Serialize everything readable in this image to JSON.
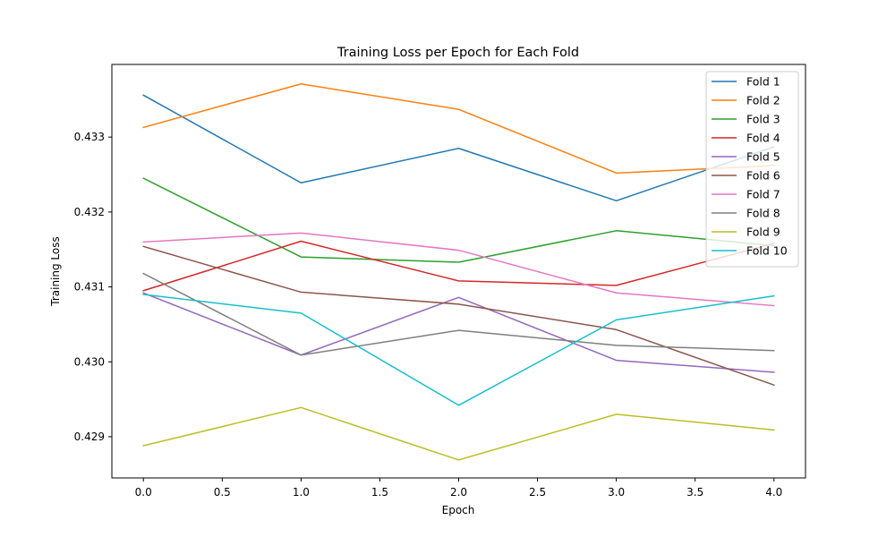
{
  "chart_data": {
    "type": "line",
    "title": "Training Loss per Epoch for Each Fold",
    "xlabel": "Epoch",
    "ylabel": "Training Loss",
    "x": [
      0,
      1,
      2,
      3,
      4
    ],
    "xlim": [
      -0.2,
      4.2
    ],
    "ylim": [
      0.42845,
      0.43397
    ],
    "xticks": [
      "0.0",
      "0.5",
      "1.0",
      "1.5",
      "2.0",
      "2.5",
      "3.0",
      "3.5",
      "4.0"
    ],
    "yticks": [
      "0.429",
      "0.430",
      "0.431",
      "0.432",
      "0.433"
    ],
    "grid": false,
    "legend_position": "top-right",
    "series": [
      {
        "name": "Fold 1",
        "color": "#1f77b4",
        "values": [
          0.43356,
          0.43239,
          0.43285,
          0.43215,
          0.43287
        ]
      },
      {
        "name": "Fold 2",
        "color": "#ff7f0e",
        "values": [
          0.43313,
          0.43371,
          0.43337,
          0.43252,
          0.43262
        ]
      },
      {
        "name": "Fold 3",
        "color": "#2ca02c",
        "values": [
          0.43245,
          0.4314,
          0.43133,
          0.43175,
          0.43155
        ]
      },
      {
        "name": "Fold 4",
        "color": "#d62728",
        "values": [
          0.43095,
          0.43161,
          0.43108,
          0.43102,
          0.43158
        ]
      },
      {
        "name": "Fold 5",
        "color": "#9467bd",
        "values": [
          0.43092,
          0.43009,
          0.43086,
          0.43002,
          0.42986
        ]
      },
      {
        "name": "Fold 6",
        "color": "#8c564b",
        "values": [
          0.43154,
          0.43093,
          0.43077,
          0.43043,
          0.42969
        ]
      },
      {
        "name": "Fold 7",
        "color": "#e377c2",
        "values": [
          0.4316,
          0.43172,
          0.43149,
          0.43092,
          0.43075
        ]
      },
      {
        "name": "Fold 8",
        "color": "#7f7f7f",
        "values": [
          0.43118,
          0.43009,
          0.43042,
          0.43022,
          0.43015
        ]
      },
      {
        "name": "Fold 9",
        "color": "#bcbd22",
        "values": [
          0.42888,
          0.42939,
          0.42869,
          0.4293,
          0.42909
        ]
      },
      {
        "name": "Fold 10",
        "color": "#17becf",
        "values": [
          0.4309,
          0.43065,
          0.42942,
          0.43056,
          0.43088
        ]
      }
    ]
  }
}
